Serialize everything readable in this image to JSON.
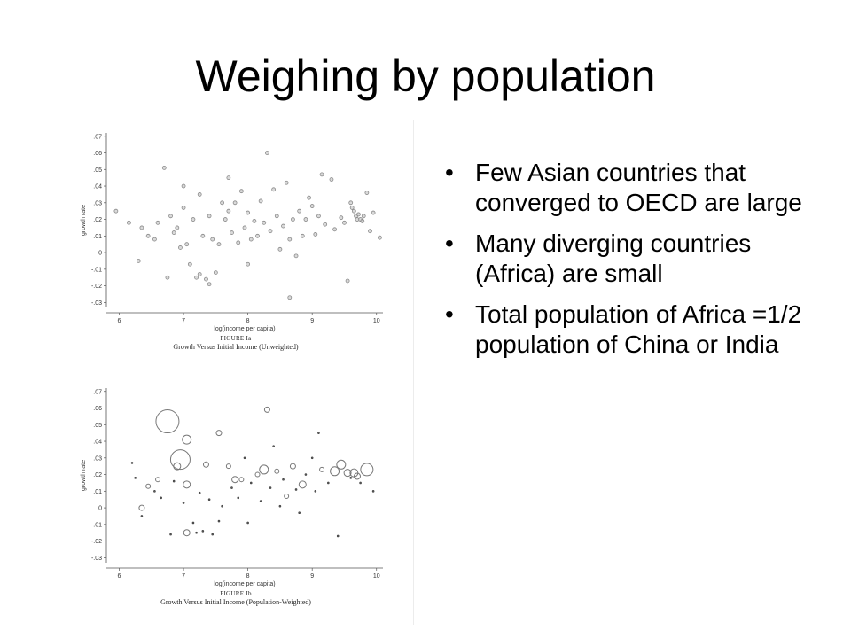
{
  "slide": {
    "title": "Weighing by population",
    "bullets": [
      "Few Asian countries that converged to OECD are large",
      "Many diverging countries (Africa) are small",
      "Total population of Africa =1/2 population of China or India"
    ],
    "bullet_char": "•"
  },
  "chart_data": [
    {
      "type": "scatter",
      "figure_label": "FIGURE Ia",
      "caption": "Growth Versus Initial Income (Unweighted)",
      "xlabel": "log(income per capita)",
      "ylabel": "growth rate",
      "xlim": [
        5.8,
        10.1
      ],
      "ylim": [
        -0.033,
        0.072
      ],
      "xticks": [
        "6",
        "7",
        "8",
        "9",
        "10"
      ],
      "yticks": [
        ".07",
        ".06",
        ".05",
        ".04",
        ".03",
        ".02",
        ".01",
        "0",
        "-.01",
        "-.02",
        "-.03"
      ],
      "grid": false,
      "points": [
        {
          "x": 5.95,
          "y": 0.025
        },
        {
          "x": 6.15,
          "y": 0.018
        },
        {
          "x": 6.3,
          "y": -0.005
        },
        {
          "x": 6.35,
          "y": 0.015
        },
        {
          "x": 6.45,
          "y": 0.01
        },
        {
          "x": 6.55,
          "y": 0.008
        },
        {
          "x": 6.6,
          "y": 0.018
        },
        {
          "x": 6.7,
          "y": 0.051
        },
        {
          "x": 6.75,
          "y": -0.015
        },
        {
          "x": 6.8,
          "y": 0.022
        },
        {
          "x": 6.85,
          "y": 0.012
        },
        {
          "x": 6.9,
          "y": 0.015
        },
        {
          "x": 6.95,
          "y": 0.003
        },
        {
          "x": 7.0,
          "y": 0.04
        },
        {
          "x": 7.0,
          "y": 0.027
        },
        {
          "x": 7.05,
          "y": 0.005
        },
        {
          "x": 7.1,
          "y": -0.007
        },
        {
          "x": 7.15,
          "y": 0.02
        },
        {
          "x": 7.2,
          "y": -0.015
        },
        {
          "x": 7.25,
          "y": -0.013
        },
        {
          "x": 7.25,
          "y": 0.035
        },
        {
          "x": 7.3,
          "y": 0.01
        },
        {
          "x": 7.35,
          "y": -0.016
        },
        {
          "x": 7.4,
          "y": -0.019
        },
        {
          "x": 7.4,
          "y": 0.022
        },
        {
          "x": 7.45,
          "y": 0.008
        },
        {
          "x": 7.5,
          "y": -0.012
        },
        {
          "x": 7.55,
          "y": 0.005
        },
        {
          "x": 7.6,
          "y": 0.03
        },
        {
          "x": 7.65,
          "y": 0.02
        },
        {
          "x": 7.7,
          "y": 0.025
        },
        {
          "x": 7.7,
          "y": 0.045
        },
        {
          "x": 7.75,
          "y": 0.012
        },
        {
          "x": 7.8,
          "y": 0.03
        },
        {
          "x": 7.85,
          "y": 0.006
        },
        {
          "x": 7.9,
          "y": 0.037
        },
        {
          "x": 7.95,
          "y": 0.015
        },
        {
          "x": 8.0,
          "y": 0.024
        },
        {
          "x": 8.0,
          "y": -0.007
        },
        {
          "x": 8.05,
          "y": 0.008
        },
        {
          "x": 8.1,
          "y": 0.019
        },
        {
          "x": 8.15,
          "y": 0.01
        },
        {
          "x": 8.2,
          "y": 0.031
        },
        {
          "x": 8.25,
          "y": 0.018
        },
        {
          "x": 8.3,
          "y": 0.06
        },
        {
          "x": 8.35,
          "y": 0.013
        },
        {
          "x": 8.4,
          "y": 0.038
        },
        {
          "x": 8.45,
          "y": 0.022
        },
        {
          "x": 8.5,
          "y": 0.002
        },
        {
          "x": 8.55,
          "y": 0.016
        },
        {
          "x": 8.6,
          "y": 0.042
        },
        {
          "x": 8.65,
          "y": 0.008
        },
        {
          "x": 8.65,
          "y": -0.027
        },
        {
          "x": 8.7,
          "y": 0.02
        },
        {
          "x": 8.75,
          "y": -0.002
        },
        {
          "x": 8.8,
          "y": 0.025
        },
        {
          "x": 8.85,
          "y": 0.01
        },
        {
          "x": 8.9,
          "y": 0.02
        },
        {
          "x": 8.95,
          "y": 0.033
        },
        {
          "x": 9.0,
          "y": 0.028
        },
        {
          "x": 9.05,
          "y": 0.011
        },
        {
          "x": 9.1,
          "y": 0.022
        },
        {
          "x": 9.15,
          "y": 0.047
        },
        {
          "x": 9.2,
          "y": 0.017
        },
        {
          "x": 9.3,
          "y": 0.044
        },
        {
          "x": 9.35,
          "y": 0.014
        },
        {
          "x": 9.45,
          "y": 0.021
        },
        {
          "x": 9.5,
          "y": 0.018
        },
        {
          "x": 9.55,
          "y": -0.017
        },
        {
          "x": 9.6,
          "y": 0.03
        },
        {
          "x": 9.62,
          "y": 0.027
        },
        {
          "x": 9.65,
          "y": 0.025
        },
        {
          "x": 9.68,
          "y": 0.022
        },
        {
          "x": 9.7,
          "y": 0.02
        },
        {
          "x": 9.72,
          "y": 0.023
        },
        {
          "x": 9.75,
          "y": 0.02
        },
        {
          "x": 9.78,
          "y": 0.019
        },
        {
          "x": 9.8,
          "y": 0.022
        },
        {
          "x": 9.85,
          "y": 0.036
        },
        {
          "x": 9.9,
          "y": 0.013
        },
        {
          "x": 9.95,
          "y": 0.024
        },
        {
          "x": 10.05,
          "y": 0.009
        }
      ]
    },
    {
      "type": "scatter",
      "figure_label": "FIGURE Ib",
      "caption": "Growth Versus Initial Income (Population-Weighted)",
      "xlabel": "log(income per capita)",
      "ylabel": "growth rate",
      "xlim": [
        5.8,
        10.1
      ],
      "ylim": [
        -0.033,
        0.072
      ],
      "xticks": [
        "6",
        "7",
        "8",
        "9",
        "10"
      ],
      "yticks": [
        ".07",
        ".06",
        ".05",
        ".04",
        ".03",
        ".02",
        ".01",
        "0",
        "-.01",
        "-.02",
        "-.03"
      ],
      "grid": false,
      "points": [
        {
          "x": 6.75,
          "y": 0.052,
          "size": 13
        },
        {
          "x": 6.95,
          "y": 0.029,
          "size": 11
        },
        {
          "x": 7.05,
          "y": 0.041,
          "size": 5
        },
        {
          "x": 7.05,
          "y": 0.014,
          "size": 4
        },
        {
          "x": 6.9,
          "y": 0.025,
          "size": 4
        },
        {
          "x": 7.05,
          "y": -0.015,
          "size": 3.5
        },
        {
          "x": 7.55,
          "y": 0.045,
          "size": 3
        },
        {
          "x": 7.8,
          "y": 0.017,
          "size": 3.5
        },
        {
          "x": 8.25,
          "y": 0.023,
          "size": 5
        },
        {
          "x": 8.3,
          "y": 0.059,
          "size": 3
        },
        {
          "x": 8.7,
          "y": 0.025,
          "size": 3
        },
        {
          "x": 8.85,
          "y": 0.014,
          "size": 4
        },
        {
          "x": 9.35,
          "y": 0.022,
          "size": 5
        },
        {
          "x": 9.45,
          "y": 0.026,
          "size": 5
        },
        {
          "x": 9.55,
          "y": 0.021,
          "size": 4
        },
        {
          "x": 9.65,
          "y": 0.021,
          "size": 4.5
        },
        {
          "x": 9.7,
          "y": 0.019,
          "size": 3.5
        },
        {
          "x": 9.85,
          "y": 0.023,
          "size": 7
        },
        {
          "x": 6.35,
          "y": 0.0,
          "size": 3
        },
        {
          "x": 6.45,
          "y": 0.013,
          "size": 2.5
        },
        {
          "x": 6.6,
          "y": 0.017,
          "size": 2.5
        },
        {
          "x": 7.35,
          "y": 0.026,
          "size": 3
        },
        {
          "x": 7.7,
          "y": 0.025,
          "size": 2.5
        },
        {
          "x": 7.9,
          "y": 0.017,
          "size": 2.5
        },
        {
          "x": 8.15,
          "y": 0.02,
          "size": 2.5
        },
        {
          "x": 8.45,
          "y": 0.022,
          "size": 2.5
        },
        {
          "x": 8.6,
          "y": 0.007,
          "size": 2.5
        },
        {
          "x": 9.15,
          "y": 0.023,
          "size": 2.5
        },
        {
          "x": 9.4,
          "y": -0.017,
          "size": 2
        },
        {
          "x": 6.2,
          "y": 0.027,
          "size": 1.5
        },
        {
          "x": 6.25,
          "y": 0.018,
          "size": 1.5
        },
        {
          "x": 6.35,
          "y": -0.005,
          "size": 1.5
        },
        {
          "x": 6.55,
          "y": 0.01,
          "size": 1.5
        },
        {
          "x": 6.65,
          "y": 0.006,
          "size": 1.5
        },
        {
          "x": 6.8,
          "y": -0.016,
          "size": 1.5
        },
        {
          "x": 6.85,
          "y": 0.016,
          "size": 1.5
        },
        {
          "x": 7.0,
          "y": 0.003,
          "size": 1.5
        },
        {
          "x": 7.15,
          "y": -0.009,
          "size": 1.5
        },
        {
          "x": 7.2,
          "y": -0.015,
          "size": 1.5
        },
        {
          "x": 7.25,
          "y": 0.009,
          "size": 1.5
        },
        {
          "x": 7.3,
          "y": -0.014,
          "size": 1.5
        },
        {
          "x": 7.4,
          "y": 0.005,
          "size": 1.5
        },
        {
          "x": 7.45,
          "y": -0.016,
          "size": 1.5
        },
        {
          "x": 7.55,
          "y": -0.008,
          "size": 1.5
        },
        {
          "x": 7.6,
          "y": 0.001,
          "size": 1.5
        },
        {
          "x": 7.75,
          "y": 0.012,
          "size": 1.5
        },
        {
          "x": 7.85,
          "y": 0.006,
          "size": 1.5
        },
        {
          "x": 7.95,
          "y": 0.03,
          "size": 1.5
        },
        {
          "x": 8.0,
          "y": -0.009,
          "size": 1.5
        },
        {
          "x": 8.05,
          "y": 0.015,
          "size": 1.5
        },
        {
          "x": 8.2,
          "y": 0.004,
          "size": 1.5
        },
        {
          "x": 8.35,
          "y": 0.012,
          "size": 1.5
        },
        {
          "x": 8.4,
          "y": 0.037,
          "size": 1.5
        },
        {
          "x": 8.5,
          "y": 0.001,
          "size": 1.5
        },
        {
          "x": 8.55,
          "y": 0.017,
          "size": 1.5
        },
        {
          "x": 8.75,
          "y": 0.011,
          "size": 1.5
        },
        {
          "x": 8.8,
          "y": -0.003,
          "size": 1.5
        },
        {
          "x": 8.9,
          "y": 0.02,
          "size": 1.5
        },
        {
          "x": 9.0,
          "y": 0.03,
          "size": 1.5
        },
        {
          "x": 9.05,
          "y": 0.01,
          "size": 1.5
        },
        {
          "x": 9.1,
          "y": 0.045,
          "size": 1.5
        },
        {
          "x": 9.25,
          "y": 0.015,
          "size": 1.5
        },
        {
          "x": 9.6,
          "y": 0.018,
          "size": 1.5
        },
        {
          "x": 9.75,
          "y": 0.015,
          "size": 1.5
        },
        {
          "x": 9.95,
          "y": 0.01,
          "size": 1.5
        }
      ]
    }
  ]
}
